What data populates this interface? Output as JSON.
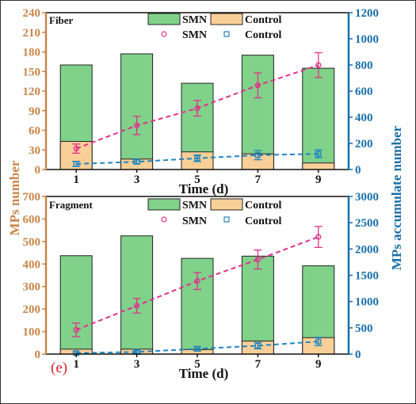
{
  "panel_label": "(e)",
  "y_left_label": "MPs number",
  "y_right_label": "MPs accumulate number",
  "colors": {
    "smn_bar": "#80d18a",
    "control_bar": "#f9cf98",
    "smn_line": "#e0318a",
    "control_line": "#1e86c0",
    "left_axis": "#c8864a",
    "right_axis": "#1a6fa8"
  },
  "chart_data": [
    {
      "type": "bar",
      "title": "Fiber",
      "xlabel": "Time (d)",
      "categories": [
        "1",
        "3",
        "5",
        "7",
        "9"
      ],
      "ylim": [
        0,
        240
      ],
      "yticks": [
        0,
        30,
        60,
        90,
        120,
        150,
        180,
        210,
        240
      ],
      "y2lim": [
        0,
        1200
      ],
      "y2ticks": [
        0,
        200,
        400,
        600,
        800,
        1000,
        1200
      ],
      "legend": {
        "bar_smn": "SMN",
        "bar_control": "Control",
        "line_smn": "SMN",
        "line_control": "Control"
      },
      "series": [
        {
          "name": "SMN",
          "kind": "bar",
          "values": [
            160,
            177,
            132,
            175,
            155
          ]
        },
        {
          "name": "Control",
          "kind": "bar",
          "values": [
            43,
            16,
            27,
            24,
            10
          ]
        },
        {
          "name": "SMN",
          "kind": "line",
          "axis": "right",
          "values": [
            160,
            337,
            469,
            644,
            799
          ],
          "err": [
            35,
            70,
            60,
            95,
            95
          ]
        },
        {
          "name": "Control",
          "kind": "line",
          "axis": "right",
          "values": [
            43,
            59,
            86,
            110,
            120
          ],
          "err": [
            20,
            15,
            25,
            35,
            30
          ]
        }
      ]
    },
    {
      "type": "bar",
      "title": "Fragment",
      "xlabel": "Time (d)",
      "categories": [
        "1",
        "3",
        "5",
        "7",
        "9"
      ],
      "ylim": [
        0,
        700
      ],
      "yticks": [
        0,
        100,
        200,
        300,
        400,
        500,
        600,
        700
      ],
      "y2lim": [
        0,
        3000
      ],
      "y2ticks": [
        0,
        500,
        1000,
        1500,
        2000,
        2500,
        3000
      ],
      "legend": {
        "bar_smn": "SMN",
        "bar_control": "Control",
        "line_smn": "SMN",
        "line_control": "Control"
      },
      "series": [
        {
          "name": "SMN",
          "kind": "bar",
          "values": [
            437,
            525,
            425,
            435,
            392
          ]
        },
        {
          "name": "Control",
          "kind": "bar",
          "values": [
            22,
            22,
            20,
            58,
            73
          ]
        },
        {
          "name": "SMN",
          "kind": "line",
          "axis": "right",
          "values": [
            460,
            920,
            1390,
            1800,
            2230
          ],
          "err": [
            130,
            140,
            160,
            180,
            200
          ]
        },
        {
          "name": "Control",
          "kind": "line",
          "axis": "right",
          "values": [
            20,
            40,
            100,
            160,
            240
          ],
          "err": [
            20,
            25,
            40,
            60,
            80
          ]
        }
      ]
    }
  ]
}
